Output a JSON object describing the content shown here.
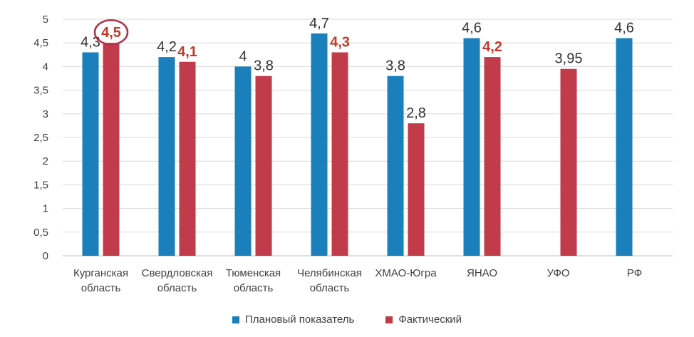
{
  "chart_data": {
    "type": "bar",
    "title": "",
    "xlabel": "",
    "ylabel": "",
    "ylim": [
      0,
      5
    ],
    "yticks": [
      "0",
      "0,5",
      "1",
      "1,5",
      "2",
      "2,5",
      "3",
      "3,5",
      "4",
      "4,5",
      "5"
    ],
    "grid": true,
    "legend_position": "bottom",
    "categories": [
      [
        "Курганская",
        "область"
      ],
      [
        "Свердловская",
        "область"
      ],
      [
        "Тюменская",
        "область"
      ],
      [
        "Челябинская",
        "область"
      ],
      [
        "ХМАО-Югра"
      ],
      [
        "ЯНАО"
      ],
      [
        "УФО"
      ],
      [
        "РФ"
      ]
    ],
    "series": [
      {
        "name": "Плановый показатель",
        "color": "#1a7fba",
        "values": [
          4.3,
          4.2,
          4.0,
          4.7,
          3.8,
          4.6,
          null,
          4.6
        ],
        "labels": [
          "4,3",
          "4,2",
          "4",
          "4,7",
          "3,8",
          "4,6",
          null,
          "4,6"
        ],
        "bold_labels": [
          false,
          false,
          false,
          false,
          false,
          false,
          false,
          false
        ]
      },
      {
        "name": "Фактический",
        "color": "#c23b4a",
        "values": [
          4.5,
          4.1,
          3.8,
          4.3,
          2.8,
          4.2,
          3.95,
          null
        ],
        "labels": [
          "4,5",
          "4,1",
          "3,8",
          "4,3",
          "2,8",
          "4,2",
          "3,95",
          null
        ],
        "bold_labels": [
          true,
          true,
          false,
          true,
          false,
          true,
          false,
          false
        ]
      }
    ],
    "annotations": [
      {
        "type": "circle",
        "series": 1,
        "category": 0,
        "color": "#b03045"
      }
    ],
    "gridline_color": "#d9d9d9",
    "axis_color": "#bfbfbf"
  }
}
